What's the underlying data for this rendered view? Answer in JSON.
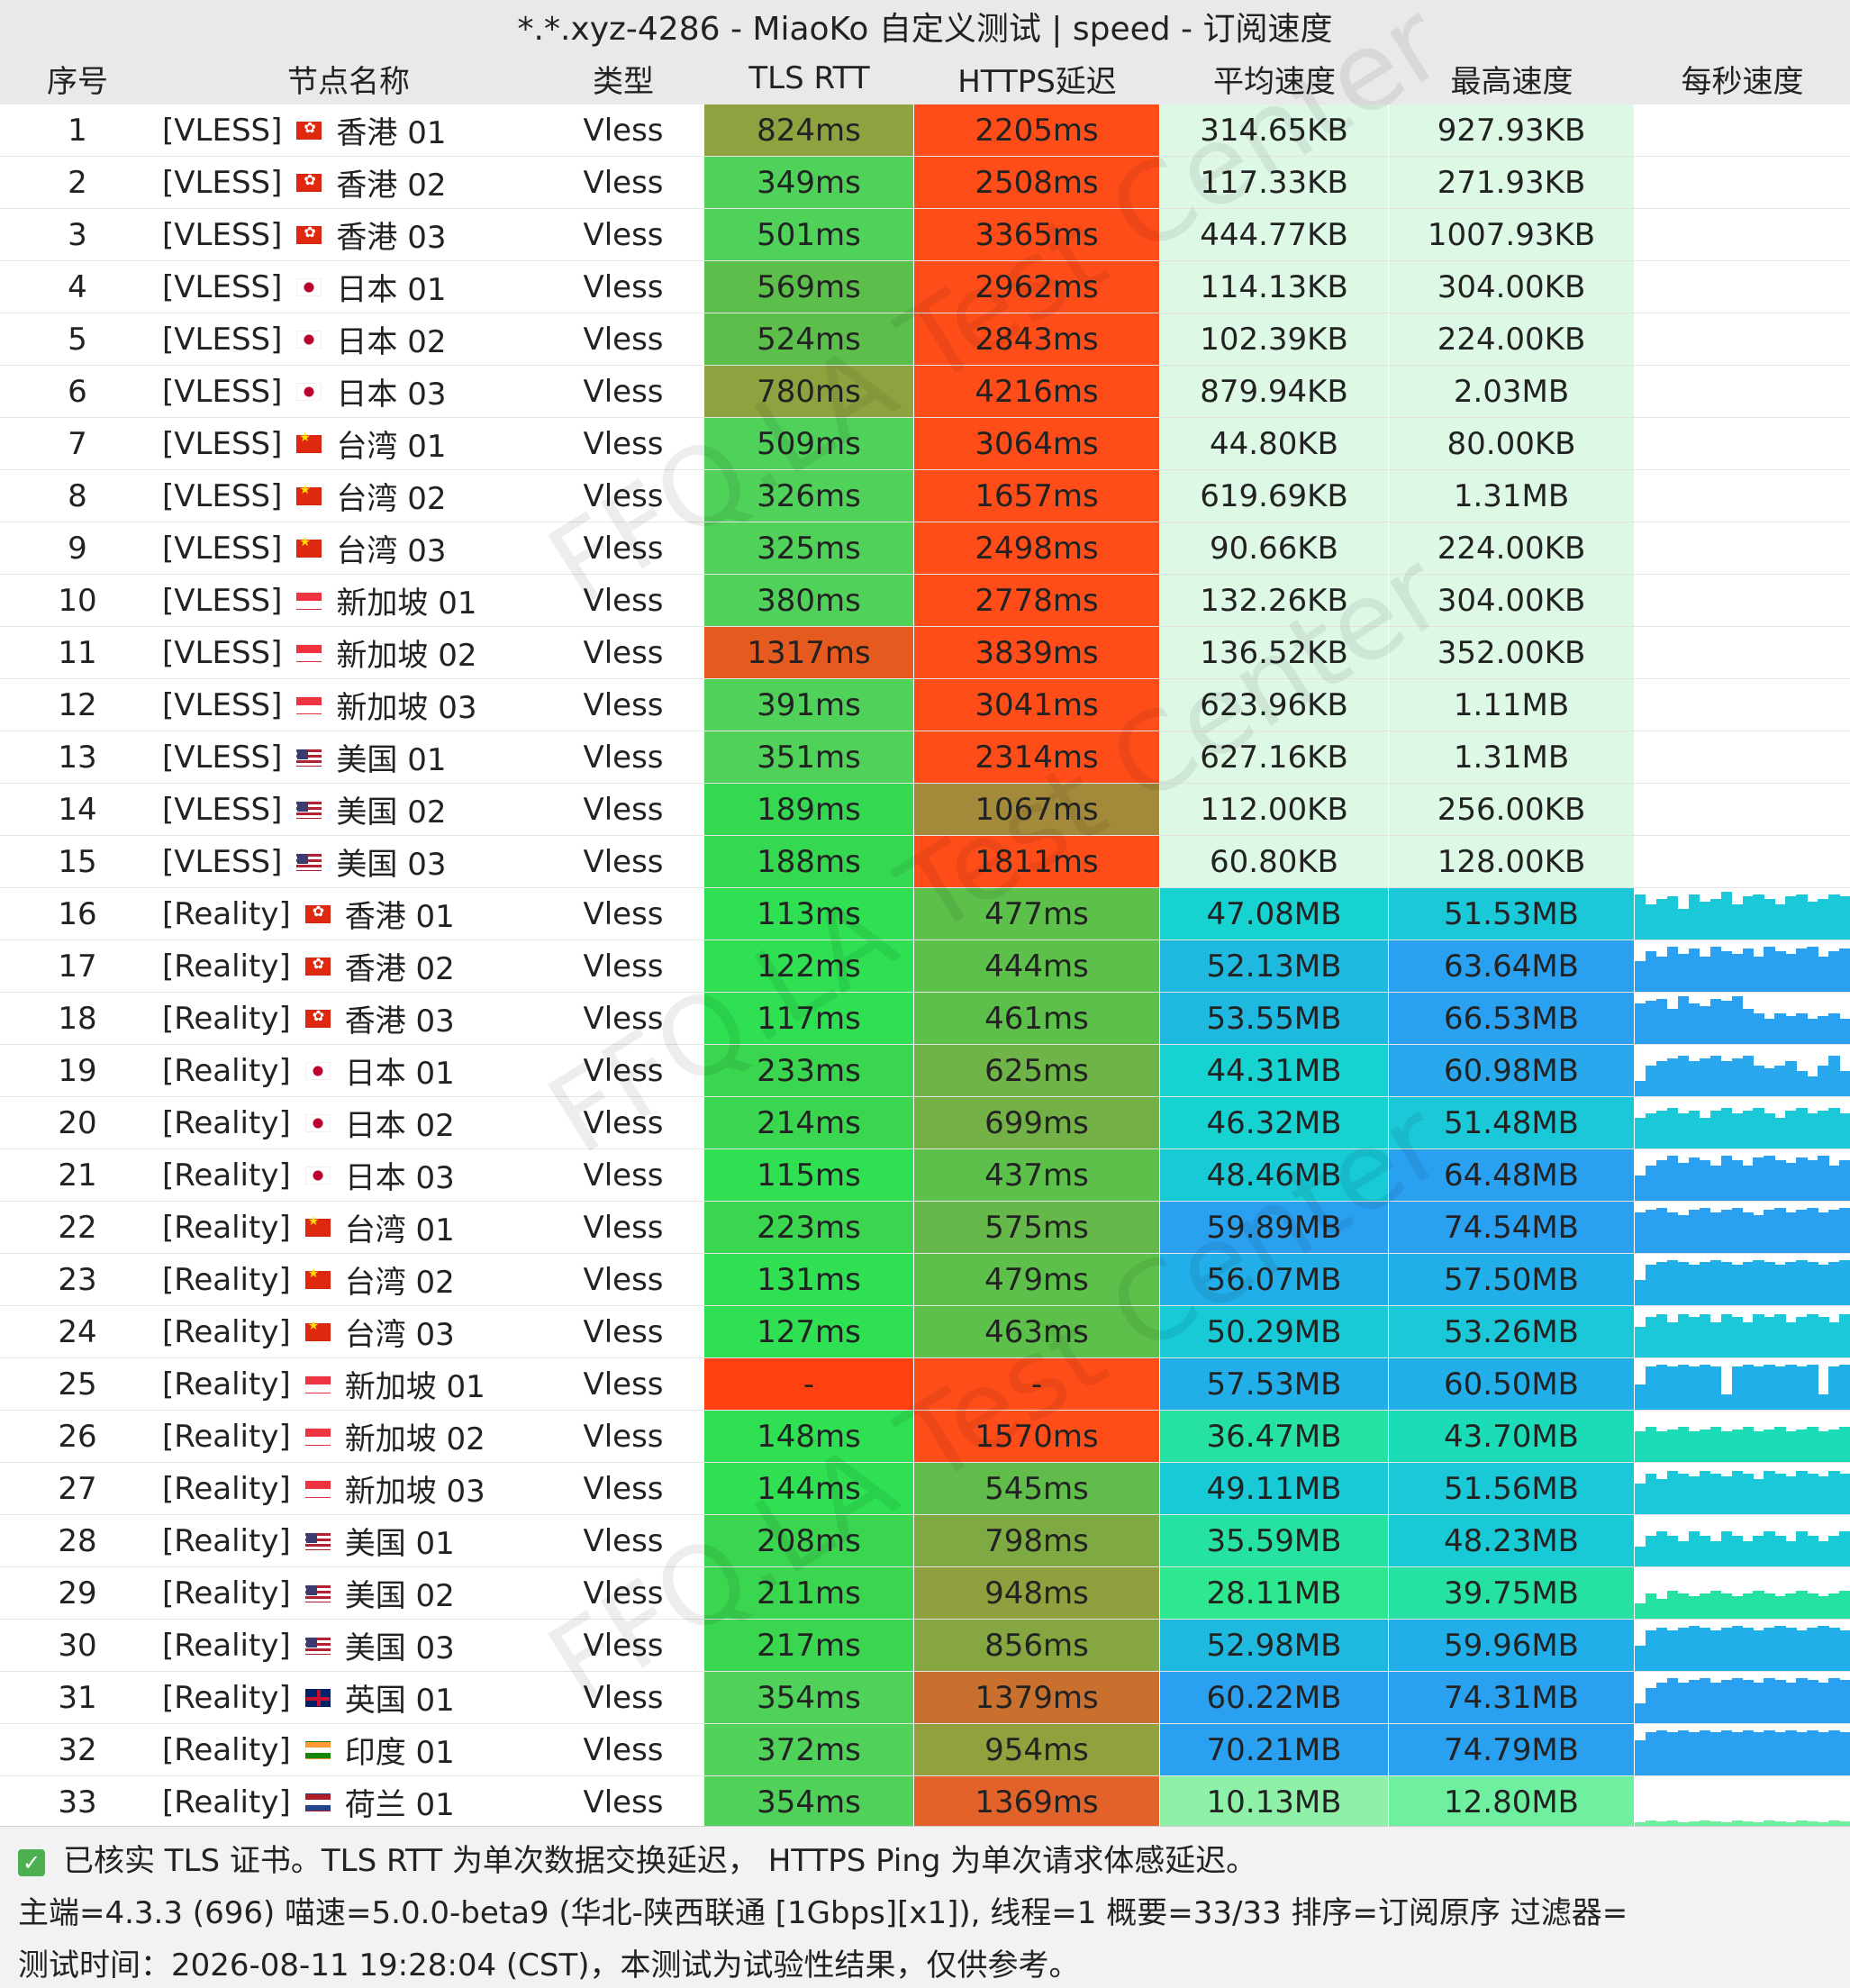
{
  "window": {
    "title": "*.*.xyz-4286 - MiaoKo 自定义测试 | speed - 订阅速度"
  },
  "columns": [
    "序号",
    "节点名称",
    "类型",
    "TLS RTT",
    "HTTPS延迟",
    "平均速度",
    "最高速度",
    "每秒速度"
  ],
  "colors": {
    "tls_green": "#4fd15a",
    "tls_olive": "#8ea33f",
    "tls_orange": "#e55a1f",
    "tls_red": "#ff4010",
    "https_red": "#ff4d1a",
    "https_olive": "#a38a3a",
    "https_green": "#5cc04a",
    "speed_pale": "#def8e6",
    "speed_aqua": "#16d2d0",
    "speed_teal": "#1ccfb8",
    "speed_blue": "#2aa0f0",
    "speed_sky": "#25b8f0",
    "speed_mint": "#26e2a2",
    "speed_light_green": "#8ff0a8"
  },
  "rows": [
    {
      "no": "1",
      "tag": "[VLESS]",
      "flag": "hk",
      "region": "香港 01",
      "type": "Vless",
      "tls": "824ms",
      "https": "2205ms",
      "avg": "314.65KB",
      "max": "927.93KB",
      "tls_color": "#8ea33f",
      "https_color": "#ff4d1a",
      "avg_color": "#def8e6",
      "max_color": "#def8e6",
      "spark": []
    },
    {
      "no": "2",
      "tag": "[VLESS]",
      "flag": "hk",
      "region": "香港 02",
      "type": "Vless",
      "tls": "349ms",
      "https": "2508ms",
      "avg": "117.33KB",
      "max": "271.93KB",
      "tls_color": "#4fd15a",
      "https_color": "#ff4d1a",
      "avg_color": "#def8e6",
      "max_color": "#def8e6",
      "spark": []
    },
    {
      "no": "3",
      "tag": "[VLESS]",
      "flag": "hk",
      "region": "香港 03",
      "type": "Vless",
      "tls": "501ms",
      "https": "3365ms",
      "avg": "444.77KB",
      "max": "1007.93KB",
      "tls_color": "#4fd15a",
      "https_color": "#ff4d1a",
      "avg_color": "#def8e6",
      "max_color": "#def8e6",
      "spark": []
    },
    {
      "no": "4",
      "tag": "[VLESS]",
      "flag": "jp",
      "region": "日本 01",
      "type": "Vless",
      "tls": "569ms",
      "https": "2962ms",
      "avg": "114.13KB",
      "max": "304.00KB",
      "tls_color": "#5cbf4c",
      "https_color": "#ff4d1a",
      "avg_color": "#def8e6",
      "max_color": "#def8e6",
      "spark": []
    },
    {
      "no": "5",
      "tag": "[VLESS]",
      "flag": "jp",
      "region": "日本 02",
      "type": "Vless",
      "tls": "524ms",
      "https": "2843ms",
      "avg": "102.39KB",
      "max": "224.00KB",
      "tls_color": "#5cbf4c",
      "https_color": "#ff4d1a",
      "avg_color": "#def8e6",
      "max_color": "#def8e6",
      "spark": []
    },
    {
      "no": "6",
      "tag": "[VLESS]",
      "flag": "jp",
      "region": "日本 03",
      "type": "Vless",
      "tls": "780ms",
      "https": "4216ms",
      "avg": "879.94KB",
      "max": "2.03MB",
      "tls_color": "#8ea33f",
      "https_color": "#ff4d1a",
      "avg_color": "#def8e6",
      "max_color": "#def8e6",
      "spark": []
    },
    {
      "no": "7",
      "tag": "[VLESS]",
      "flag": "tw",
      "region": "台湾 01",
      "type": "Vless",
      "tls": "509ms",
      "https": "3064ms",
      "avg": "44.80KB",
      "max": "80.00KB",
      "tls_color": "#4fd15a",
      "https_color": "#ff4d1a",
      "avg_color": "#def8e6",
      "max_color": "#def8e6",
      "spark": []
    },
    {
      "no": "8",
      "tag": "[VLESS]",
      "flag": "tw",
      "region": "台湾 02",
      "type": "Vless",
      "tls": "326ms",
      "https": "1657ms",
      "avg": "619.69KB",
      "max": "1.31MB",
      "tls_color": "#4fd15a",
      "https_color": "#ff4d1a",
      "avg_color": "#def8e6",
      "max_color": "#def8e6",
      "spark": []
    },
    {
      "no": "9",
      "tag": "[VLESS]",
      "flag": "tw",
      "region": "台湾 03",
      "type": "Vless",
      "tls": "325ms",
      "https": "2498ms",
      "avg": "90.66KB",
      "max": "224.00KB",
      "tls_color": "#4fd15a",
      "https_color": "#ff4d1a",
      "avg_color": "#def8e6",
      "max_color": "#def8e6",
      "spark": []
    },
    {
      "no": "10",
      "tag": "[VLESS]",
      "flag": "sg",
      "region": "新加坡 01",
      "type": "Vless",
      "tls": "380ms",
      "https": "2778ms",
      "avg": "132.26KB",
      "max": "304.00KB",
      "tls_color": "#4fd15a",
      "https_color": "#ff4d1a",
      "avg_color": "#def8e6",
      "max_color": "#def8e6",
      "spark": []
    },
    {
      "no": "11",
      "tag": "[VLESS]",
      "flag": "sg",
      "region": "新加坡 02",
      "type": "Vless",
      "tls": "1317ms",
      "https": "3839ms",
      "avg": "136.52KB",
      "max": "352.00KB",
      "tls_color": "#e55a1f",
      "https_color": "#ff4d1a",
      "avg_color": "#def8e6",
      "max_color": "#def8e6",
      "spark": []
    },
    {
      "no": "12",
      "tag": "[VLESS]",
      "flag": "sg",
      "region": "新加坡 03",
      "type": "Vless",
      "tls": "391ms",
      "https": "3041ms",
      "avg": "623.96KB",
      "max": "1.11MB",
      "tls_color": "#4fd15a",
      "https_color": "#ff4d1a",
      "avg_color": "#def8e6",
      "max_color": "#def8e6",
      "spark": []
    },
    {
      "no": "13",
      "tag": "[VLESS]",
      "flag": "us",
      "region": "美国 01",
      "type": "Vless",
      "tls": "351ms",
      "https": "2314ms",
      "avg": "627.16KB",
      "max": "1.31MB",
      "tls_color": "#4fd15a",
      "https_color": "#ff4d1a",
      "avg_color": "#def8e6",
      "max_color": "#def8e6",
      "spark": []
    },
    {
      "no": "14",
      "tag": "[VLESS]",
      "flag": "us",
      "region": "美国 02",
      "type": "Vless",
      "tls": "189ms",
      "https": "1067ms",
      "avg": "112.00KB",
      "max": "256.00KB",
      "tls_color": "#34d951",
      "https_color": "#a38a3a",
      "avg_color": "#def8e6",
      "max_color": "#def8e6",
      "spark": []
    },
    {
      "no": "15",
      "tag": "[VLESS]",
      "flag": "us",
      "region": "美国 03",
      "type": "Vless",
      "tls": "188ms",
      "https": "1811ms",
      "avg": "60.80KB",
      "max": "128.00KB",
      "tls_color": "#34d951",
      "https_color": "#ff4d1a",
      "avg_color": "#def8e6",
      "max_color": "#def8e6",
      "spark": []
    },
    {
      "no": "16",
      "tag": "[Reality]",
      "flag": "hk",
      "region": "香港 01",
      "type": "Vless",
      "tls": "113ms",
      "https": "477ms",
      "avg": "47.08MB",
      "max": "51.53MB",
      "tls_color": "#2ee052",
      "https_color": "#5cc04a",
      "avg_color": "#16d2d0",
      "max_color": "#1bc8d8",
      "spark": [
        0.9,
        0.7,
        0.8,
        0.85,
        0.6,
        0.9,
        0.75,
        0.8,
        0.95,
        0.7,
        0.85,
        0.9,
        0.8,
        0.7,
        0.85,
        0.9,
        0.75,
        0.8,
        0.9,
        0.85
      ]
    },
    {
      "no": "17",
      "tag": "[Reality]",
      "flag": "hk",
      "region": "香港 02",
      "type": "Vless",
      "tls": "122ms",
      "https": "444ms",
      "avg": "52.13MB",
      "max": "63.64MB",
      "tls_color": "#2ee052",
      "https_color": "#5cc04a",
      "avg_color": "#1fb9e0",
      "max_color": "#2aa0f0",
      "spark": [
        0.6,
        0.8,
        0.7,
        0.9,
        0.75,
        0.85,
        0.7,
        0.9,
        0.8,
        0.75,
        0.85,
        0.7,
        0.9,
        0.8,
        0.75,
        0.85,
        0.9,
        0.7,
        0.8,
        0.85
      ]
    },
    {
      "no": "18",
      "tag": "[Reality]",
      "flag": "hk",
      "region": "香港 03",
      "type": "Vless",
      "tls": "117ms",
      "https": "461ms",
      "avg": "53.55MB",
      "max": "66.53MB",
      "tls_color": "#2ee052",
      "https_color": "#5cc04a",
      "avg_color": "#1fb9e0",
      "max_color": "#2aa0f0",
      "spark": [
        0.8,
        0.85,
        0.9,
        0.7,
        0.95,
        0.8,
        0.75,
        0.9,
        0.85,
        0.95,
        0.7,
        0.6,
        0.5,
        0.6,
        0.55,
        0.6,
        0.5,
        0.55,
        0.6,
        0.5
      ]
    },
    {
      "no": "19",
      "tag": "[Reality]",
      "flag": "jp",
      "region": "日本 01",
      "type": "Vless",
      "tls": "233ms",
      "https": "625ms",
      "avg": "44.31MB",
      "max": "60.98MB",
      "tls_color": "#3ad64f",
      "https_color": "#6fb448",
      "avg_color": "#16d2d0",
      "max_color": "#2aa8ee",
      "spark": [
        0.3,
        0.6,
        0.7,
        0.75,
        0.8,
        0.7,
        0.75,
        0.8,
        0.7,
        0.75,
        0.8,
        0.6,
        0.55,
        0.6,
        0.7,
        0.5,
        0.4,
        0.6,
        0.8,
        0.5
      ]
    },
    {
      "no": "20",
      "tag": "[Reality]",
      "flag": "jp",
      "region": "日本 02",
      "type": "Vless",
      "tls": "214ms",
      "https": "699ms",
      "avg": "46.32MB",
      "max": "51.48MB",
      "tls_color": "#3ad64f",
      "https_color": "#73b046",
      "avg_color": "#16d2d0",
      "max_color": "#1bc8d8",
      "spark": [
        0.6,
        0.7,
        0.75,
        0.8,
        0.7,
        0.75,
        0.6,
        0.75,
        0.8,
        0.7,
        0.75,
        0.8,
        0.7,
        0.6,
        0.75,
        0.8,
        0.7,
        0.75,
        0.8,
        0.7
      ]
    },
    {
      "no": "21",
      "tag": "[Reality]",
      "flag": "jp",
      "region": "日本 03",
      "type": "Vless",
      "tls": "115ms",
      "https": "437ms",
      "avg": "48.46MB",
      "max": "64.48MB",
      "tls_color": "#2ee052",
      "https_color": "#5cc04a",
      "avg_color": "#18c9d6",
      "max_color": "#2aa0f0",
      "spark": [
        0.5,
        0.7,
        0.8,
        0.9,
        0.75,
        0.85,
        0.8,
        0.7,
        0.9,
        0.8,
        0.7,
        0.85,
        0.9,
        0.8,
        0.75,
        0.85,
        0.8,
        0.9,
        0.7,
        0.8
      ]
    },
    {
      "no": "22",
      "tag": "[Reality]",
      "flag": "tw",
      "region": "台湾 01",
      "type": "Vless",
      "tls": "223ms",
      "https": "575ms",
      "avg": "59.89MB",
      "max": "74.54MB",
      "tls_color": "#3ad64f",
      "https_color": "#66b84a",
      "avg_color": "#2aa0f0",
      "max_color": "#2aa0f0",
      "spark": [
        0.8,
        0.85,
        0.9,
        0.8,
        0.75,
        0.85,
        0.9,
        0.8,
        0.85,
        0.9,
        0.8,
        0.75,
        0.85,
        0.9,
        0.8,
        0.85,
        0.9,
        0.8,
        0.85,
        0.9
      ]
    },
    {
      "no": "23",
      "tag": "[Reality]",
      "flag": "tw",
      "region": "台湾 02",
      "type": "Vless",
      "tls": "131ms",
      "https": "479ms",
      "avg": "56.07MB",
      "max": "57.50MB",
      "tls_color": "#2ee052",
      "https_color": "#5cc04a",
      "avg_color": "#22aee8",
      "max_color": "#22aee8",
      "spark": [
        0.5,
        0.8,
        0.85,
        0.9,
        0.85,
        0.8,
        0.85,
        0.9,
        0.85,
        0.8,
        0.85,
        0.9,
        0.85,
        0.8,
        0.85,
        0.9,
        0.85,
        0.8,
        0.85,
        0.9
      ]
    },
    {
      "no": "24",
      "tag": "[Reality]",
      "flag": "tw",
      "region": "台湾 03",
      "type": "Vless",
      "tls": "127ms",
      "https": "463ms",
      "avg": "50.29MB",
      "max": "53.26MB",
      "tls_color": "#2ee052",
      "https_color": "#5cc04a",
      "avg_color": "#18c9d6",
      "max_color": "#1bc8d8",
      "spark": [
        0.6,
        0.8,
        0.85,
        0.7,
        0.85,
        0.8,
        0.85,
        0.7,
        0.85,
        0.8,
        0.7,
        0.85,
        0.8,
        0.85,
        0.7,
        0.8,
        0.85,
        0.8,
        0.7,
        0.85
      ]
    },
    {
      "no": "25",
      "tag": "[Reality]",
      "flag": "sg",
      "region": "新加坡 01",
      "type": "Vless",
      "tls": "-",
      "https": "-",
      "avg": "57.53MB",
      "max": "60.50MB",
      "tls_color": "#ff4010",
      "https_color": "#ff4d1a",
      "avg_color": "#22aee8",
      "max_color": "#22aee8",
      "spark": [
        0.5,
        0.85,
        0.9,
        0.85,
        0.9,
        0.85,
        0.9,
        0.85,
        0.3,
        0.85,
        0.9,
        0.85,
        0.9,
        0.85,
        0.9,
        0.85,
        0.9,
        0.3,
        0.85,
        0.9
      ]
    },
    {
      "no": "26",
      "tag": "[Reality]",
      "flag": "sg",
      "region": "新加坡 02",
      "type": "Vless",
      "tls": "148ms",
      "https": "1570ms",
      "avg": "36.47MB",
      "max": "43.70MB",
      "tls_color": "#2ee052",
      "https_color": "#ff4d1a",
      "avg_color": "#26e2a2",
      "max_color": "#1cdcb8",
      "spark": [
        0.6,
        0.7,
        0.6,
        0.65,
        0.7,
        0.6,
        0.65,
        0.7,
        0.6,
        0.65,
        0.7,
        0.6,
        0.65,
        0.7,
        0.6,
        0.65,
        0.7,
        0.6,
        0.65,
        0.7
      ]
    },
    {
      "no": "27",
      "tag": "[Reality]",
      "flag": "sg",
      "region": "新加坡 03",
      "type": "Vless",
      "tls": "144ms",
      "https": "545ms",
      "avg": "49.11MB",
      "max": "51.56MB",
      "tls_color": "#2ee052",
      "https_color": "#62bc4b",
      "avg_color": "#18c9d6",
      "max_color": "#1bc8d8",
      "spark": [
        0.6,
        0.8,
        0.7,
        0.85,
        0.8,
        0.75,
        0.85,
        0.8,
        0.75,
        0.85,
        0.8,
        0.7,
        0.85,
        0.8,
        0.75,
        0.85,
        0.8,
        0.75,
        0.85,
        0.8
      ]
    },
    {
      "no": "28",
      "tag": "[Reality]",
      "flag": "us",
      "region": "美国 01",
      "type": "Vless",
      "tls": "208ms",
      "https": "798ms",
      "avg": "35.59MB",
      "max": "48.23MB",
      "tls_color": "#3ad64f",
      "https_color": "#7faa43",
      "avg_color": "#26e2a2",
      "max_color": "#18c9d6",
      "spark": [
        0.4,
        0.6,
        0.7,
        0.6,
        0.5,
        0.7,
        0.6,
        0.5,
        0.7,
        0.6,
        0.5,
        0.6,
        0.7,
        0.6,
        0.5,
        0.7,
        0.6,
        0.5,
        0.6,
        0.7
      ]
    },
    {
      "no": "29",
      "tag": "[Reality]",
      "flag": "us",
      "region": "美国 02",
      "type": "Vless",
      "tls": "211ms",
      "https": "948ms",
      "avg": "28.11MB",
      "max": "39.75MB",
      "tls_color": "#3ad64f",
      "https_color": "#91a03e",
      "avg_color": "#2ee890",
      "max_color": "#26e2a2",
      "spark": [
        0.3,
        0.5,
        0.4,
        0.55,
        0.5,
        0.45,
        0.5,
        0.55,
        0.5,
        0.45,
        0.5,
        0.55,
        0.5,
        0.45,
        0.5,
        0.55,
        0.5,
        0.45,
        0.5,
        0.55
      ]
    },
    {
      "no": "30",
      "tag": "[Reality]",
      "flag": "us",
      "region": "美国 03",
      "type": "Vless",
      "tls": "217ms",
      "https": "856ms",
      "avg": "52.98MB",
      "max": "59.96MB",
      "tls_color": "#3ad64f",
      "https_color": "#86a641",
      "avg_color": "#1fb9e0",
      "max_color": "#22aee8",
      "spark": [
        0.5,
        0.8,
        0.85,
        0.8,
        0.85,
        0.9,
        0.85,
        0.8,
        0.85,
        0.9,
        0.85,
        0.8,
        0.85,
        0.9,
        0.85,
        0.8,
        0.85,
        0.9,
        0.85,
        0.8
      ]
    },
    {
      "no": "31",
      "tag": "[Reality]",
      "flag": "uk",
      "region": "英国 01",
      "type": "Vless",
      "tls": "354ms",
      "https": "1379ms",
      "avg": "60.22MB",
      "max": "74.31MB",
      "tls_color": "#4fd15a",
      "https_color": "#c9702e",
      "avg_color": "#2aa0f0",
      "max_color": "#2aa0f0",
      "spark": [
        0.4,
        0.7,
        0.8,
        0.9,
        0.8,
        0.85,
        0.9,
        0.8,
        0.85,
        0.9,
        0.85,
        0.8,
        0.9,
        0.85,
        0.8,
        0.9,
        0.85,
        0.8,
        0.9,
        0.85
      ]
    },
    {
      "no": "32",
      "tag": "[Reality]",
      "flag": "in",
      "region": "印度 01",
      "type": "Vless",
      "tls": "372ms",
      "https": "954ms",
      "avg": "70.21MB",
      "max": "74.79MB",
      "tls_color": "#4fd15a",
      "https_color": "#92a03e",
      "avg_color": "#2aa0f0",
      "max_color": "#2aa0f0",
      "spark": [
        0.7,
        0.85,
        0.9,
        0.85,
        0.9,
        0.85,
        0.9,
        0.85,
        0.9,
        0.85,
        0.9,
        0.85,
        0.9,
        0.85,
        0.9,
        0.85,
        0.9,
        0.85,
        0.9,
        0.85
      ]
    },
    {
      "no": "33",
      "tag": "[Reality]",
      "flag": "nl",
      "region": "荷兰 01",
      "type": "Vless",
      "tls": "354ms",
      "https": "1369ms",
      "avg": "10.13MB",
      "max": "12.80MB",
      "tls_color": "#4fd15a",
      "https_color": "#e2622a",
      "avg_color": "#8ff0a8",
      "max_color": "#6ef0a0",
      "spark": [
        0.1,
        0.15,
        0.12,
        0.15,
        0.1,
        0.12,
        0.15,
        0.12,
        0.1,
        0.15,
        0.12,
        0.1,
        0.15,
        0.12,
        0.1,
        0.15,
        0.12,
        0.1,
        0.15,
        0.12
      ]
    }
  ],
  "footer": {
    "line1": "已核实 TLS 证书。TLS RTT 为单次数据交换延迟， HTTPS Ping 为单次请求体感延迟。",
    "line2": "主端=4.3.3 (696) 喵速=5.0.0-beta9 (华北-陕西联通 [1Gbps][x1]), 线程=1 概要=33/33 排序=订阅原序 过滤器=",
    "line3": "测试时间：2026-08-11 19:28:04 (CST)，本测试为试验性结果，仅供参考。"
  },
  "watermark": "FFQ.LA Test Center"
}
